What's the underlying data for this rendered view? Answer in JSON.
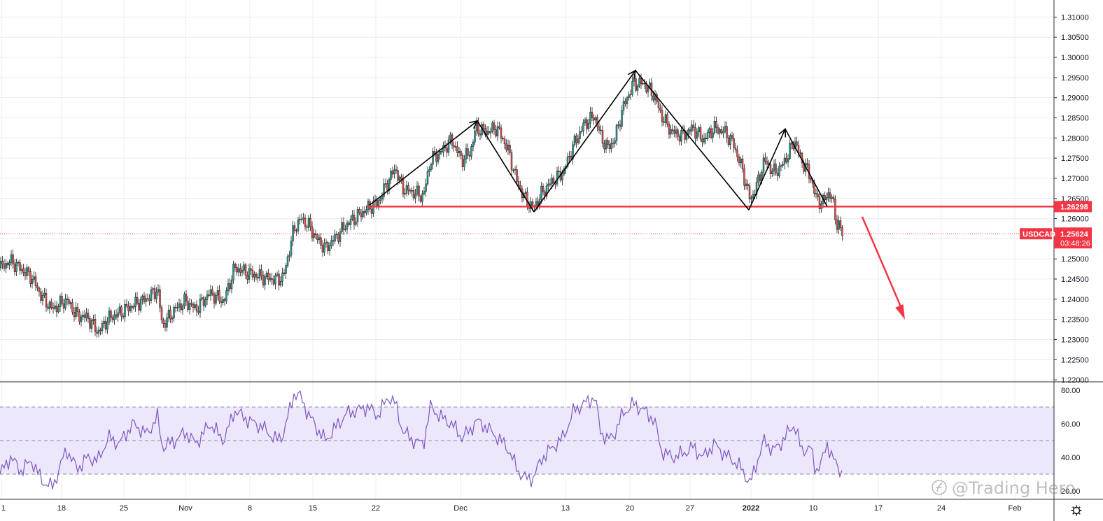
{
  "chart_data": {
    "type": "candlestick",
    "symbol": "USDCAD",
    "price_axis": {
      "ticks": [
        "1.31000",
        "1.30500",
        "1.30000",
        "1.29500",
        "1.29000",
        "1.28500",
        "1.28000",
        "1.27500",
        "1.27000",
        "1.26500",
        "1.26000",
        "1.25500",
        "1.25000",
        "1.24500",
        "1.24000",
        "1.23500",
        "1.23000",
        "1.22500",
        "1.22000"
      ],
      "range": [
        1.2195,
        1.3125
      ]
    },
    "date_axis": {
      "ticks": [
        "1",
        "18",
        "25",
        "Nov",
        "8",
        "15",
        "22",
        "Dec",
        "13",
        "20",
        "27",
        "2022",
        "10",
        "17",
        "24",
        "Feb"
      ],
      "bold_ticks": [
        "2022"
      ]
    },
    "support_level": {
      "value": 1.26298,
      "label": "1.26298",
      "color": "#f23645"
    },
    "current_price": {
      "value": 1.25624,
      "label": "1.25624",
      "countdown": "03:48:26",
      "symbol_label": "USDCAD",
      "color": "#f23645"
    },
    "price_path": [
      [
        0,
        1.2478
      ],
      [
        15,
        1.2495
      ],
      [
        30,
        1.2475
      ],
      [
        45,
        1.2455
      ],
      [
        60,
        1.2405
      ],
      [
        75,
        1.2375
      ],
      [
        95,
        1.2398
      ],
      [
        110,
        1.236
      ],
      [
        125,
        1.2355
      ],
      [
        140,
        1.2318
      ],
      [
        155,
        1.2352
      ],
      [
        170,
        1.2365
      ],
      [
        190,
        1.2385
      ],
      [
        210,
        1.2402
      ],
      [
        225,
        1.2425
      ],
      [
        232,
        1.2335
      ],
      [
        250,
        1.2375
      ],
      [
        265,
        1.2395
      ],
      [
        280,
        1.2375
      ],
      [
        300,
        1.2415
      ],
      [
        320,
        1.2395
      ],
      [
        335,
        1.2478
      ],
      [
        355,
        1.2465
      ],
      [
        375,
        1.2455
      ],
      [
        395,
        1.2448
      ],
      [
        405,
        1.2455
      ],
      [
        420,
        1.2575
      ],
      [
        430,
        1.26
      ],
      [
        440,
        1.2585
      ],
      [
        455,
        1.2545
      ],
      [
        465,
        1.2525
      ],
      [
        480,
        1.2555
      ],
      [
        495,
        1.2585
      ],
      [
        510,
        1.2605
      ],
      [
        525,
        1.2625
      ],
      [
        540,
        1.264
      ],
      [
        555,
        1.2695
      ],
      [
        565,
        1.2725
      ],
      [
        575,
        1.2675
      ],
      [
        590,
        1.2665
      ],
      [
        605,
        1.2655
      ],
      [
        615,
        1.2745
      ],
      [
        630,
        1.2765
      ],
      [
        645,
        1.2795
      ],
      [
        660,
        1.2745
      ],
      [
        672,
        1.2765
      ],
      [
        680,
        1.2825
      ],
      [
        695,
        1.2815
      ],
      [
        710,
        1.2825
      ],
      [
        725,
        1.2775
      ],
      [
        740,
        1.2685
      ],
      [
        752,
        1.2645
      ],
      [
        762,
        1.2625
      ],
      [
        775,
        1.2665
      ],
      [
        790,
        1.2695
      ],
      [
        805,
        1.2715
      ],
      [
        820,
        1.2785
      ],
      [
        835,
        1.2835
      ],
      [
        850,
        1.2855
      ],
      [
        858,
        1.2805
      ],
      [
        868,
        1.2775
      ],
      [
        878,
        1.2795
      ],
      [
        890,
        1.2875
      ],
      [
        905,
        1.2935
      ],
      [
        920,
        1.2935
      ],
      [
        935,
        1.2905
      ],
      [
        945,
        1.2855
      ],
      [
        960,
        1.2815
      ],
      [
        975,
        1.2805
      ],
      [
        990,
        1.2825
      ],
      [
        1005,
        1.2795
      ],
      [
        1020,
        1.2825
      ],
      [
        1035,
        1.2815
      ],
      [
        1048,
        1.2785
      ],
      [
        1060,
        1.2725
      ],
      [
        1072,
        1.2645
      ],
      [
        1082,
        1.2685
      ],
      [
        1092,
        1.2745
      ],
      [
        1105,
        1.2715
      ],
      [
        1115,
        1.2725
      ],
      [
        1125,
        1.2755
      ],
      [
        1135,
        1.2795
      ],
      [
        1145,
        1.2745
      ],
      [
        1158,
        1.2705
      ],
      [
        1165,
        1.2655
      ],
      [
        1175,
        1.2635
      ],
      [
        1182,
        1.2665
      ],
      [
        1190,
        1.2645
      ],
      [
        1196,
        1.2585
      ],
      [
        1205,
        1.25624
      ]
    ],
    "pattern_lines": [
      [
        [
          528,
          1.26335
        ],
        [
          682,
          1.28423
        ]
      ],
      [
        [
          682,
          1.28423
        ],
        [
          763,
          1.26165
        ]
      ],
      [
        [
          763,
          1.26165
        ],
        [
          908,
          1.29675
        ]
      ],
      [
        [
          908,
          1.29675
        ],
        [
          1070,
          1.26215
        ]
      ],
      [
        [
          1070,
          1.26215
        ],
        [
          1122,
          1.28223
        ]
      ],
      [
        [
          1122,
          1.28223
        ],
        [
          1182,
          1.26298
        ]
      ]
    ],
    "projection_arrow": {
      "from": [
        1232,
        1.26045
      ],
      "to": [
        1293,
        1.23495
      ],
      "color": "#f23645"
    },
    "rsi": {
      "axis_ticks": [
        "80.00",
        "60.00",
        "40.00",
        "20.00"
      ],
      "range": [
        20,
        80
      ],
      "overbought": 70,
      "middle": 50,
      "oversold": 30,
      "band_color": "#ede7fb",
      "line_color": "#7e57c2",
      "values": [
        [
          0,
          30
        ],
        [
          15,
          40
        ],
        [
          30,
          32
        ],
        [
          45,
          38
        ],
        [
          60,
          26
        ],
        [
          75,
          22
        ],
        [
          95,
          45
        ],
        [
          110,
          33
        ],
        [
          125,
          40
        ],
        [
          140,
          38
        ],
        [
          155,
          52
        ],
        [
          170,
          48
        ],
        [
          190,
          60
        ],
        [
          210,
          54
        ],
        [
          225,
          64
        ],
        [
          232,
          46
        ],
        [
          250,
          50
        ],
        [
          265,
          55
        ],
        [
          280,
          48
        ],
        [
          300,
          60
        ],
        [
          320,
          50
        ],
        [
          335,
          68
        ],
        [
          355,
          62
        ],
        [
          375,
          58
        ],
        [
          395,
          50
        ],
        [
          405,
          54
        ],
        [
          420,
          78
        ],
        [
          430,
          76
        ],
        [
          440,
          66
        ],
        [
          455,
          56
        ],
        [
          465,
          50
        ],
        [
          480,
          58
        ],
        [
          495,
          66
        ],
        [
          510,
          68
        ],
        [
          525,
          70
        ],
        [
          540,
          65
        ],
        [
          555,
          76
        ],
        [
          565,
          72
        ],
        [
          575,
          56
        ],
        [
          590,
          50
        ],
        [
          605,
          48
        ],
        [
          615,
          70
        ],
        [
          630,
          64
        ],
        [
          645,
          60
        ],
        [
          660,
          52
        ],
        [
          672,
          56
        ],
        [
          680,
          62
        ],
        [
          695,
          58
        ],
        [
          710,
          52
        ],
        [
          725,
          46
        ],
        [
          740,
          32
        ],
        [
          752,
          27
        ],
        [
          762,
          28
        ],
        [
          775,
          40
        ],
        [
          790,
          46
        ],
        [
          805,
          52
        ],
        [
          820,
          68
        ],
        [
          835,
          72
        ],
        [
          850,
          76
        ],
        [
          858,
          56
        ],
        [
          868,
          50
        ],
        [
          878,
          54
        ],
        [
          890,
          66
        ],
        [
          905,
          72
        ],
        [
          920,
          68
        ],
        [
          935,
          62
        ],
        [
          945,
          44
        ],
        [
          960,
          40
        ],
        [
          975,
          42
        ],
        [
          990,
          46
        ],
        [
          1005,
          40
        ],
        [
          1020,
          48
        ],
        [
          1035,
          42
        ],
        [
          1048,
          38
        ],
        [
          1060,
          33
        ],
        [
          1072,
          24
        ],
        [
          1082,
          38
        ],
        [
          1092,
          50
        ],
        [
          1105,
          44
        ],
        [
          1115,
          48
        ],
        [
          1125,
          54
        ],
        [
          1135,
          60
        ],
        [
          1145,
          44
        ],
        [
          1158,
          46
        ],
        [
          1165,
          32
        ],
        [
          1175,
          38
        ],
        [
          1182,
          48
        ],
        [
          1190,
          40
        ],
        [
          1196,
          34
        ],
        [
          1205,
          31
        ]
      ]
    }
  },
  "watermark": {
    "text": "@Trading Hero"
  },
  "icons": {
    "settings": "gear-icon",
    "watermark_logo": "logo-icon"
  },
  "colors": {
    "up": "#26a69a",
    "down": "#ef5350",
    "candle_border": "#1b1b1b",
    "grid": "#ececec",
    "axis": "#131722"
  }
}
